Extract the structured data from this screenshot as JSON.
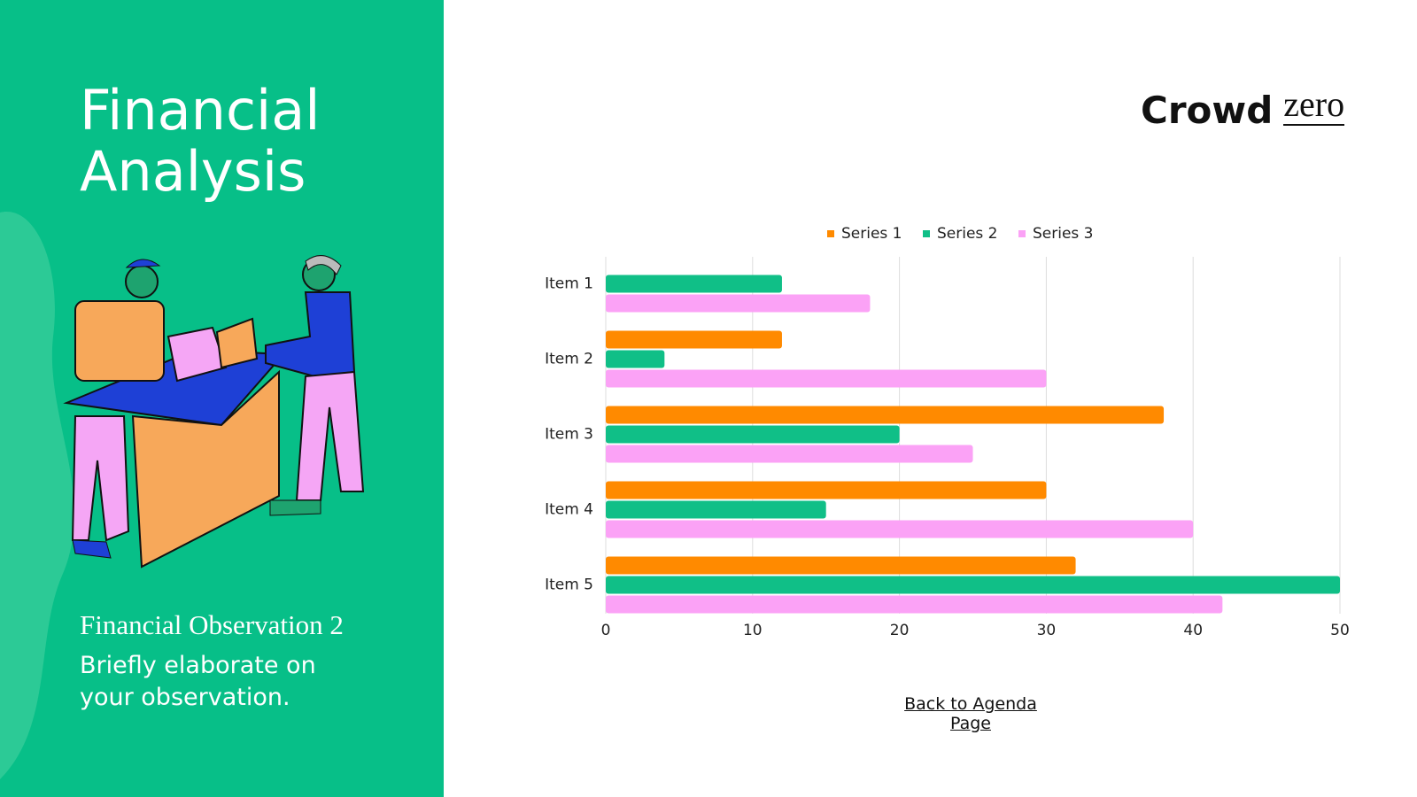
{
  "slide": {
    "title": "Financial Analysis",
    "observation_title": "Financial Observation 2",
    "observation_body": "Briefly elaborate on your observation.",
    "logo": {
      "word": "Crowd",
      "mark": "zero"
    },
    "link": "Back to Agenda Page"
  },
  "chart_data": {
    "type": "barh",
    "categories": [
      "Item 1",
      "Item 2",
      "Item 3",
      "Item 4",
      "Item 5"
    ],
    "series": [
      {
        "name": "Series 1",
        "color": "#ff8a00",
        "values": [
          0,
          12,
          38,
          30,
          32
        ]
      },
      {
        "name": "Series 2",
        "color": "#10bf87",
        "values": [
          12,
          4,
          20,
          15,
          50
        ]
      },
      {
        "name": "Series 3",
        "color": "#fba2f6",
        "values": [
          18,
          30,
          25,
          40,
          42
        ]
      }
    ],
    "xlim": [
      0,
      50
    ],
    "xticks": [
      0,
      10,
      20,
      30,
      40,
      50
    ],
    "grid": true,
    "legend": "top"
  }
}
